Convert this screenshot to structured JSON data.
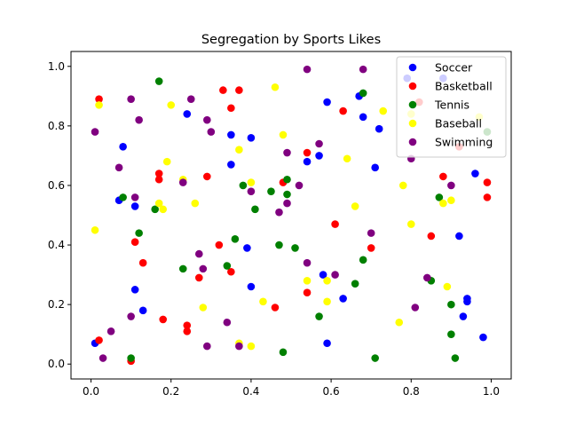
{
  "chart_data": {
    "type": "scatter",
    "title": "Segregation by Sports Likes",
    "xlabel": "",
    "ylabel": "",
    "xlim": [
      -0.05,
      1.05
    ],
    "ylim": [
      -0.05,
      1.05
    ],
    "xticks": [
      "0.0",
      "0.2",
      "0.4",
      "0.6",
      "0.8",
      "1.0"
    ],
    "yticks": [
      "0.0",
      "0.2",
      "0.4",
      "0.6",
      "0.8",
      "1.0"
    ],
    "grid": false,
    "legend_position": "top-right",
    "series": [
      {
        "name": "Soccer",
        "color": "#0000ff",
        "points": [
          [
            0.01,
            0.07
          ],
          [
            0.08,
            0.73
          ],
          [
            0.07,
            0.55
          ],
          [
            0.11,
            0.53
          ],
          [
            0.11,
            0.25
          ],
          [
            0.13,
            0.18
          ],
          [
            0.24,
            0.84
          ],
          [
            0.35,
            0.77
          ],
          [
            0.35,
            0.67
          ],
          [
            0.39,
            0.39
          ],
          [
            0.4,
            0.76
          ],
          [
            0.4,
            0.26
          ],
          [
            0.54,
            0.68
          ],
          [
            0.57,
            0.7
          ],
          [
            0.58,
            0.3
          ],
          [
            0.59,
            0.88
          ],
          [
            0.59,
            0.07
          ],
          [
            0.63,
            0.22
          ],
          [
            0.67,
            0.9
          ],
          [
            0.68,
            0.83
          ],
          [
            0.71,
            0.66
          ],
          [
            0.72,
            0.79
          ],
          [
            0.79,
            0.96
          ],
          [
            0.88,
            0.96
          ],
          [
            0.92,
            0.43
          ],
          [
            0.93,
            0.16
          ],
          [
            0.94,
            0.22
          ],
          [
            0.94,
            0.21
          ],
          [
            0.96,
            0.64
          ],
          [
            0.98,
            0.09
          ]
        ]
      },
      {
        "name": "Basketball",
        "color": "#ff0000",
        "points": [
          [
            0.02,
            0.08
          ],
          [
            0.02,
            0.89
          ],
          [
            0.1,
            0.01
          ],
          [
            0.11,
            0.41
          ],
          [
            0.13,
            0.34
          ],
          [
            0.17,
            0.64
          ],
          [
            0.17,
            0.62
          ],
          [
            0.18,
            0.15
          ],
          [
            0.24,
            0.11
          ],
          [
            0.24,
            0.13
          ],
          [
            0.27,
            0.29
          ],
          [
            0.29,
            0.63
          ],
          [
            0.32,
            0.4
          ],
          [
            0.33,
            0.92
          ],
          [
            0.35,
            0.31
          ],
          [
            0.35,
            0.86
          ],
          [
            0.37,
            0.92
          ],
          [
            0.46,
            0.19
          ],
          [
            0.48,
            0.61
          ],
          [
            0.54,
            0.24
          ],
          [
            0.54,
            0.71
          ],
          [
            0.61,
            0.47
          ],
          [
            0.63,
            0.85
          ],
          [
            0.7,
            0.39
          ],
          [
            0.88,
            0.63
          ],
          [
            0.92,
            0.73
          ],
          [
            0.99,
            0.61
          ],
          [
            0.99,
            0.56
          ],
          [
            0.85,
            0.43
          ],
          [
            0.82,
            0.88
          ]
        ]
      },
      {
        "name": "Tennis",
        "color": "#008000",
        "points": [
          [
            0.08,
            0.56
          ],
          [
            0.1,
            0.02
          ],
          [
            0.12,
            0.44
          ],
          [
            0.16,
            0.52
          ],
          [
            0.17,
            0.95
          ],
          [
            0.23,
            0.32
          ],
          [
            0.34,
            0.33
          ],
          [
            0.36,
            0.42
          ],
          [
            0.38,
            0.6
          ],
          [
            0.41,
            0.52
          ],
          [
            0.45,
            0.58
          ],
          [
            0.47,
            0.4
          ],
          [
            0.48,
            0.04
          ],
          [
            0.49,
            0.57
          ],
          [
            0.49,
            0.62
          ],
          [
            0.51,
            0.39
          ],
          [
            0.57,
            0.16
          ],
          [
            0.66,
            0.27
          ],
          [
            0.68,
            0.35
          ],
          [
            0.68,
            0.91
          ],
          [
            0.71,
            0.02
          ],
          [
            0.85,
            0.28
          ],
          [
            0.87,
            0.56
          ],
          [
            0.9,
            0.1
          ],
          [
            0.91,
            0.02
          ],
          [
            0.99,
            0.78
          ],
          [
            0.9,
            0.2
          ]
        ]
      },
      {
        "name": "Baseball",
        "color": "#ffff00",
        "points": [
          [
            0.01,
            0.45
          ],
          [
            0.02,
            0.87
          ],
          [
            0.17,
            0.54
          ],
          [
            0.18,
            0.52
          ],
          [
            0.19,
            0.68
          ],
          [
            0.2,
            0.87
          ],
          [
            0.23,
            0.62
          ],
          [
            0.26,
            0.54
          ],
          [
            0.28,
            0.19
          ],
          [
            0.37,
            0.72
          ],
          [
            0.37,
            0.07
          ],
          [
            0.4,
            0.61
          ],
          [
            0.4,
            0.06
          ],
          [
            0.43,
            0.21
          ],
          [
            0.46,
            0.93
          ],
          [
            0.48,
            0.77
          ],
          [
            0.54,
            0.28
          ],
          [
            0.59,
            0.28
          ],
          [
            0.59,
            0.21
          ],
          [
            0.64,
            0.69
          ],
          [
            0.66,
            0.53
          ],
          [
            0.73,
            0.85
          ],
          [
            0.77,
            0.14
          ],
          [
            0.78,
            0.6
          ],
          [
            0.8,
            0.47
          ],
          [
            0.88,
            0.54
          ],
          [
            0.89,
            0.26
          ],
          [
            0.9,
            0.55
          ],
          [
            0.97,
            0.83
          ],
          [
            0.8,
            0.84
          ]
        ]
      },
      {
        "name": "Swimming",
        "color": "#800080",
        "points": [
          [
            0.01,
            0.78
          ],
          [
            0.03,
            0.02
          ],
          [
            0.05,
            0.11
          ],
          [
            0.07,
            0.66
          ],
          [
            0.1,
            0.89
          ],
          [
            0.1,
            0.16
          ],
          [
            0.11,
            0.56
          ],
          [
            0.12,
            0.82
          ],
          [
            0.23,
            0.61
          ],
          [
            0.25,
            0.89
          ],
          [
            0.27,
            0.37
          ],
          [
            0.28,
            0.32
          ],
          [
            0.29,
            0.82
          ],
          [
            0.29,
            0.06
          ],
          [
            0.3,
            0.78
          ],
          [
            0.34,
            0.14
          ],
          [
            0.37,
            0.06
          ],
          [
            0.4,
            0.58
          ],
          [
            0.47,
            0.51
          ],
          [
            0.49,
            0.71
          ],
          [
            0.49,
            0.54
          ],
          [
            0.52,
            0.6
          ],
          [
            0.54,
            0.99
          ],
          [
            0.54,
            0.34
          ],
          [
            0.57,
            0.74
          ],
          [
            0.61,
            0.3
          ],
          [
            0.68,
            0.99
          ],
          [
            0.7,
            0.44
          ],
          [
            0.8,
            0.69
          ],
          [
            0.81,
            0.19
          ],
          [
            0.84,
            0.29
          ],
          [
            0.9,
            0.6
          ]
        ]
      }
    ]
  }
}
